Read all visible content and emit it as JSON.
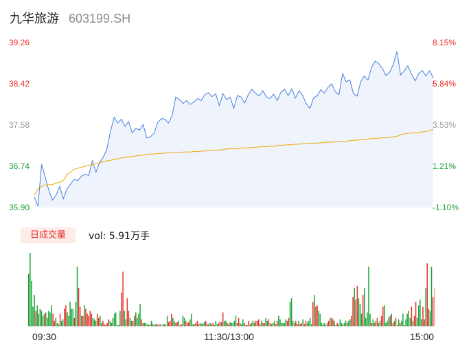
{
  "header": {
    "name": "九华旅游",
    "code": "603199.SH"
  },
  "colors": {
    "up": "#e8302a",
    "down": "#1aa336",
    "neutral": "#999999",
    "price_line": "#4a7fe0",
    "price_fill": "#eef3fc",
    "avg_line": "#f0a800",
    "vol_tag_bg": "#fdece8"
  },
  "chart_data": [
    {
      "type": "line",
      "title": "",
      "x_ticks": [
        "09:30",
        "11:30/13:00",
        "15:00"
      ],
      "y_left_ticks": [
        "39.26",
        "38.42",
        "37.58",
        "36.74",
        "35.90"
      ],
      "y_right_ticks": [
        "8.15%",
        "5.84%",
        "3.53%",
        "1.21%",
        "-1.10%"
      ],
      "ylim": [
        35.9,
        39.26
      ],
      "prev_close": 37.58,
      "series": [
        {
          "values": [
            36.12,
            35.93,
            36.78,
            36.52,
            36.25,
            36.05,
            36.15,
            36.33,
            36.08,
            36.28,
            36.38,
            36.47,
            36.45,
            36.54,
            36.58,
            36.55,
            36.85,
            36.62,
            36.82,
            36.92,
            37.09,
            37.45,
            37.74,
            37.62,
            37.7,
            37.55,
            37.65,
            37.42,
            37.51,
            37.48,
            37.59,
            37.32,
            37.34,
            37.41,
            37.63,
            37.71,
            37.7,
            37.62,
            37.77,
            38.15,
            38.1,
            38.02,
            38.08,
            38.0,
            38.05,
            38.12,
            38.08,
            38.2,
            38.24,
            38.16,
            38.22,
            37.98,
            38.22,
            38.1,
            38.15,
            37.92,
            38.18,
            38.15,
            38.03,
            38.2,
            38.31,
            38.23,
            38.17,
            38.28,
            38.15,
            38.12,
            38.21,
            38.08,
            38.25,
            38.31,
            38.18,
            38.32,
            38.13,
            38.28,
            38.18,
            38.01,
            37.92,
            38.13,
            38.18,
            38.3,
            38.23,
            38.35,
            38.42,
            38.26,
            38.2,
            38.63,
            38.46,
            38.5,
            38.22,
            38.17,
            38.46,
            38.58,
            38.5,
            38.76,
            38.88,
            38.83,
            38.73,
            38.59,
            38.66,
            38.82,
            39.08,
            38.6,
            38.68,
            38.79,
            38.62,
            38.48,
            38.63,
            38.69,
            38.58,
            38.69,
            38.54
          ],
          "note_x": "evenly spaced minute samples from 09:30 to 15:00"
        },
        {
          "values": [
            36.15,
            36.28,
            36.33,
            36.36,
            36.36,
            36.37,
            36.4,
            36.41,
            36.45,
            36.57,
            36.62,
            36.68,
            36.7,
            36.72,
            36.74,
            36.76,
            36.77,
            36.79,
            36.81,
            36.83,
            36.85,
            36.86,
            36.88,
            36.89,
            36.91,
            36.92,
            36.93,
            36.94,
            36.95,
            36.96,
            36.97,
            36.98,
            36.99,
            36.99,
            37.0,
            37.0,
            37.01,
            37.01,
            37.02,
            37.02,
            37.02,
            37.03,
            37.03,
            37.03,
            37.04,
            37.04,
            37.05,
            37.05,
            37.06,
            37.06,
            37.07,
            37.07,
            37.08,
            37.09,
            37.1,
            37.1,
            37.1,
            37.11,
            37.11,
            37.12,
            37.12,
            37.13,
            37.13,
            37.14,
            37.14,
            37.15,
            37.15,
            37.16,
            37.17,
            37.17,
            37.18,
            37.18,
            37.19,
            37.19,
            37.2,
            37.2,
            37.21,
            37.21,
            37.21,
            37.22,
            37.22,
            37.23,
            37.23,
            37.24,
            37.24,
            37.25,
            37.25,
            37.26,
            37.27,
            37.27,
            37.28,
            37.28,
            37.3,
            37.3,
            37.31,
            37.31,
            37.32,
            37.32,
            37.33,
            37.34,
            37.35,
            37.38,
            37.4,
            37.41,
            37.42,
            37.42,
            37.43,
            37.44,
            37.45,
            37.47,
            37.49
          ]
        }
      ]
    },
    {
      "type": "bar",
      "label": "日成交量",
      "vol_text": "vol: 5.91万手",
      "x_ticks": [
        "09:30",
        "11:30/13:00",
        "15:00"
      ],
      "values": [
        75,
        105,
        65,
        28,
        45,
        22,
        30,
        18,
        25,
        22,
        15,
        18,
        20,
        12,
        22,
        20,
        30,
        18,
        8,
        12,
        5,
        3,
        18,
        8,
        10,
        25,
        30,
        20,
        15,
        35,
        25,
        25,
        12,
        35,
        85,
        55,
        28,
        15,
        15,
        30,
        25,
        18,
        15,
        22,
        18,
        12,
        10,
        8,
        18,
        12,
        15,
        5,
        8,
        3,
        2,
        5,
        10,
        8,
        5,
        12,
        18,
        20,
        2,
        2,
        22,
        48,
        78,
        22,
        10,
        40,
        22,
        12,
        8,
        8,
        15,
        20,
        12,
        18,
        32,
        10,
        5,
        5,
        5,
        3,
        2,
        3,
        8,
        3,
        2,
        3,
        3,
        2,
        3,
        1,
        3,
        3,
        2,
        15,
        6,
        8,
        18,
        12,
        8,
        5,
        6,
        8,
        2,
        3,
        15,
        12,
        8,
        5,
        6,
        10,
        18,
        3,
        3,
        5,
        8,
        3,
        5,
        3,
        5,
        6,
        8,
        3,
        3,
        5,
        3,
        5,
        2,
        8,
        3,
        5,
        7,
        6,
        20,
        8,
        8,
        5,
        3,
        6,
        5,
        5,
        8,
        15,
        5,
        12,
        5,
        3,
        10,
        5,
        2,
        2,
        8,
        3,
        5,
        8,
        5,
        8,
        8,
        10,
        3,
        8,
        5,
        5,
        12,
        8,
        10,
        5,
        3,
        5,
        8,
        3,
        8,
        15,
        10,
        5,
        5,
        5,
        10,
        8,
        12,
        35,
        40,
        8,
        5,
        8,
        3,
        8,
        3,
        5,
        10,
        3,
        8,
        5,
        8,
        12,
        3,
        35,
        45,
        28,
        30,
        22,
        18,
        5,
        3,
        5,
        2,
        5,
        8,
        12,
        12,
        10,
        8,
        2,
        5,
        3,
        10,
        5,
        3,
        5,
        8,
        5,
        8,
        10,
        15,
        42,
        55,
        38,
        58,
        40,
        32,
        18,
        45,
        55,
        12,
        20,
        85,
        18,
        5,
        10,
        5,
        8,
        12,
        5,
        8,
        15,
        28,
        30,
        5,
        8,
        12,
        15,
        18,
        5,
        8,
        12,
        2,
        10,
        5,
        8,
        18,
        2,
        10,
        18,
        22,
        12,
        28,
        8,
        15,
        35,
        12,
        30,
        38,
        10,
        28,
        10,
        55,
        90,
        25,
        22,
        85,
        42,
        55
      ],
      "directions": "ddddduddddduddddduudddudduudddddudduududuuuuuddduudduuuuudddddddduudduudduudddduudddudddduduuddduduuudduuduudduuudddduuudddduudduuddduududduuddddduuddduuduuddduuudduudduuddduudddddduudddduuduuduudddduduudddddduuduudduddddddudduuduudddudddddudududduuddddudududduddddddduduudddduuduudduduuuddduuuddduuduuddudduduuddddduuuuudd"
    }
  ]
}
